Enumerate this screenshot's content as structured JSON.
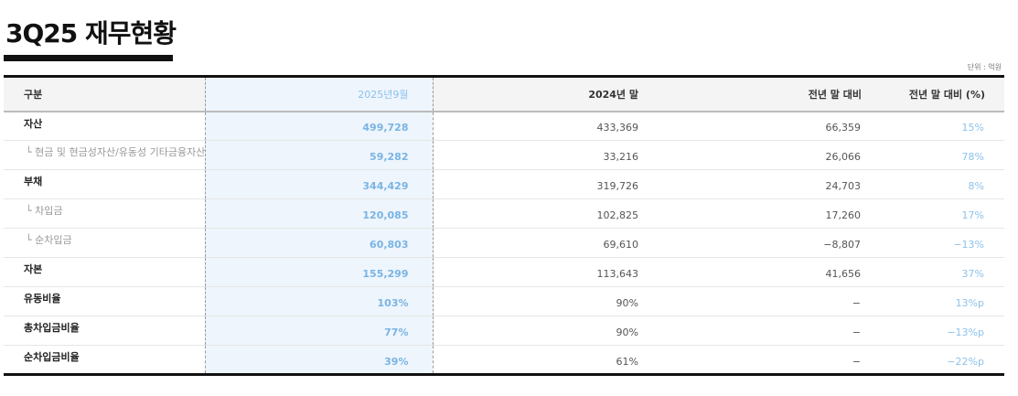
{
  "title": "3Q25 재무현황",
  "unit": "단위 : 억원",
  "headers": [
    "구분",
    "2025년9월",
    "2024년 말",
    "전년 말 대비",
    "전년 말 대비 (%)"
  ],
  "rows": [
    {
      "label": "자산",
      "cur": "499,728",
      "prev": "433,369",
      "diff": "66,359",
      "pct": "15%"
    },
    {
      "label": "└ 현금 및 현금성자산/유동성 기타금융자산",
      "cur": "59,282",
      "prev": "33,216",
      "diff": "26,066",
      "pct": "78%"
    },
    {
      "label": "부채",
      "cur": "344,429",
      "prev": "319,726",
      "diff": "24,703",
      "pct": "8%"
    },
    {
      "label": "└ 차입금",
      "cur": "120,085",
      "prev": "102,825",
      "diff": "17,260",
      "pct": "17%"
    },
    {
      "label": "└ 순차입금",
      "cur": "60,803",
      "prev": "69,610",
      "diff": "−8,807",
      "pct": "−13%"
    },
    {
      "label": "자본",
      "cur": "155,299",
      "prev": "113,643",
      "diff": "41,656",
      "pct": "37%"
    },
    {
      "label": "유동비율",
      "cur": "103%",
      "prev": "90%",
      "diff": "−",
      "pct": "13%p"
    },
    {
      "label": "총차입금비율",
      "cur": "77%",
      "prev": "90%",
      "diff": "−",
      "pct": "−13%p"
    },
    {
      "label": "순차입금비율",
      "cur": "39%",
      "prev": "61%",
      "diff": "−",
      "pct": "−22%p"
    }
  ]
}
